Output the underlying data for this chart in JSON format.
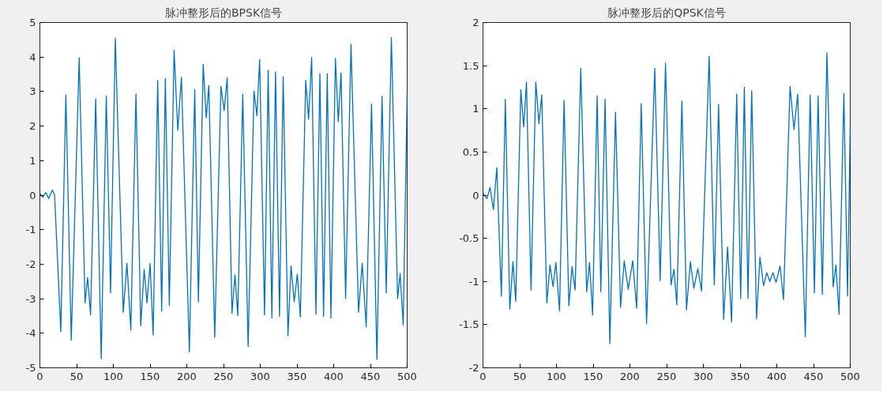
{
  "chart_data": [
    {
      "type": "line",
      "title": "脉冲整形后的BPSK信号",
      "xlim": [
        0,
        500
      ],
      "ylim": [
        -5,
        5
      ],
      "xticks": [
        0,
        50,
        100,
        150,
        200,
        250,
        300,
        350,
        400,
        450,
        500
      ],
      "yticks": [
        -5,
        -4,
        -3,
        -2,
        -1,
        0,
        1,
        2,
        3,
        4,
        5
      ],
      "grid": false,
      "series": [
        {
          "color": "#0072bd",
          "x": [
            0,
            4,
            8,
            12,
            17,
            20,
            28.5,
            35.4,
            42.7,
            53.5,
            61.5,
            65,
            69,
            76,
            83.5,
            90.4,
            96.2,
            102.7,
            113.5,
            118.5,
            123.8,
            130.8,
            137.3,
            141.9,
            145.8,
            150,
            154.2,
            160.4,
            165.8,
            170.8,
            176.2,
            182.7,
            187.7,
            192.7,
            203.5,
            210.8,
            215.8,
            222.3,
            226.5,
            230,
            238,
            246.5,
            250.8,
            255,
            261.5,
            265.6,
            269.4,
            276.2,
            283.5,
            291.5,
            295.4,
            299.2,
            305.8,
            310.8,
            315.8,
            320.8,
            326.2,
            331.2,
            337.7,
            341.9,
            346.2,
            350.4,
            354.6,
            361.9,
            365.8,
            370,
            375.8,
            381.2,
            386.2,
            391.2,
            396.2,
            402.3,
            406.2,
            410,
            416.2,
            423.5,
            433.8,
            438.8,
            444.2,
            451.5,
            458.8,
            465.8,
            471.5,
            478.5,
            487,
            490.4,
            494.6,
            500
          ],
          "values": [
            0.05,
            -0.06,
            0.08,
            -0.1,
            0.15,
            0,
            -3.95,
            2.9,
            -4.2,
            3.98,
            -3.12,
            -2.39,
            -3.47,
            2.79,
            -4.74,
            2.87,
            -2.83,
            4.55,
            -3.39,
            -1.97,
            -3.9,
            2.93,
            -3.78,
            -2.15,
            -3.12,
            -1.98,
            -4.05,
            3.32,
            -3.35,
            3.38,
            -3.19,
            4.2,
            1.88,
            3.41,
            -4.54,
            3.06,
            -3.09,
            3.79,
            2.24,
            3.18,
            -4.12,
            3.15,
            2.45,
            3.4,
            -3.42,
            -2.31,
            -3.49,
            2.92,
            -4.39,
            3.02,
            2.3,
            3.93,
            -3.47,
            3.62,
            -3.56,
            3.57,
            -3.51,
            3.43,
            -4.07,
            -2.05,
            -3.09,
            -2.29,
            -3.53,
            3.33,
            2.2,
            3.99,
            -3.45,
            3.52,
            -3.51,
            3.52,
            -3.56,
            3.96,
            2.13,
            3.54,
            -3,
            4.37,
            -3.39,
            -1.97,
            -3.81,
            2.64,
            -4.76,
            2.86,
            -2.83,
            4.57,
            -3,
            -2.27,
            -3.76,
            2.94
          ]
        }
      ]
    },
    {
      "type": "line",
      "title": "脉冲整形后的QPSK信号",
      "xlim": [
        0,
        500
      ],
      "ylim": [
        -2,
        2
      ],
      "xticks": [
        0,
        50,
        100,
        150,
        200,
        250,
        300,
        350,
        400,
        450,
        500
      ],
      "yticks": [
        -2,
        -1.5,
        -1,
        -0.5,
        0,
        0.5,
        1,
        1.5,
        2
      ],
      "grid": false,
      "series": [
        {
          "color": "#0072bd",
          "x": [
            0,
            5.4,
            9.6,
            14.2,
            18.8,
            25,
            30.4,
            36.5,
            40.8,
            44.6,
            51.5,
            55.4,
            59.2,
            65.4,
            71.9,
            76.2,
            80,
            86.9,
            91.2,
            95.4,
            99.2,
            104.2,
            110.4,
            116.9,
            121.2,
            125.4,
            133.1,
            141.2,
            145,
            149.2,
            155.4,
            160.4,
            166.2,
            172.7,
            180.4,
            187.3,
            192.3,
            197.7,
            203.8,
            209.2,
            215.4,
            222.7,
            233.8,
            241.2,
            248.5,
            256,
            260,
            263.8,
            270.8,
            277,
            282.4,
            287.1,
            292.5,
            297.5,
            307.9,
            314.9,
            320.7,
            327.6,
            333,
            338.4,
            345.4,
            350.8,
            355.8,
            360.8,
            365.8,
            372.4,
            377,
            382,
            386.3,
            390.5,
            394.8,
            399,
            404.4,
            409.1,
            418,
            423.4,
            428.4,
            438.8,
            445.4,
            451.2,
            456.2,
            462,
            468.2,
            476.7,
            480.5,
            484.7,
            491.3,
            496.3,
            500
          ],
          "values": [
            0.02,
            -0.04,
            0.09,
            -0.17,
            0.32,
            -1.17,
            1.11,
            -1.32,
            -0.77,
            -1.23,
            1.22,
            0.79,
            1.31,
            -1.1,
            1.31,
            0.83,
            1.16,
            -1.25,
            -0.81,
            -1.06,
            -0.78,
            -1.34,
            1.1,
            -1.28,
            -0.83,
            -1.1,
            1.47,
            -1.12,
            -0.78,
            -1.39,
            1.15,
            -1.12,
            1.11,
            -1.72,
            0.96,
            -1.3,
            -0.76,
            -1.09,
            -0.76,
            -1.31,
            1.06,
            -1.49,
            1.47,
            -0.99,
            1.53,
            -1.04,
            -0.86,
            -1.27,
            1.09,
            -1.33,
            -0.77,
            -1.08,
            -0.85,
            -1.11,
            1.61,
            -1.04,
            1.05,
            -1.44,
            -0.6,
            -1.47,
            1.17,
            -1.2,
            1.25,
            -1.2,
            1.21,
            -1.43,
            -0.72,
            -1.05,
            -0.9,
            -1,
            -0.9,
            -1.01,
            -0.82,
            -1.21,
            1.26,
            0.76,
            1.17,
            -1.64,
            1.16,
            -1.13,
            1.15,
            -1.15,
            1.65,
            -1.06,
            -0.81,
            -1.38,
            1.18,
            -1.17,
            0.82
          ]
        }
      ]
    }
  ]
}
